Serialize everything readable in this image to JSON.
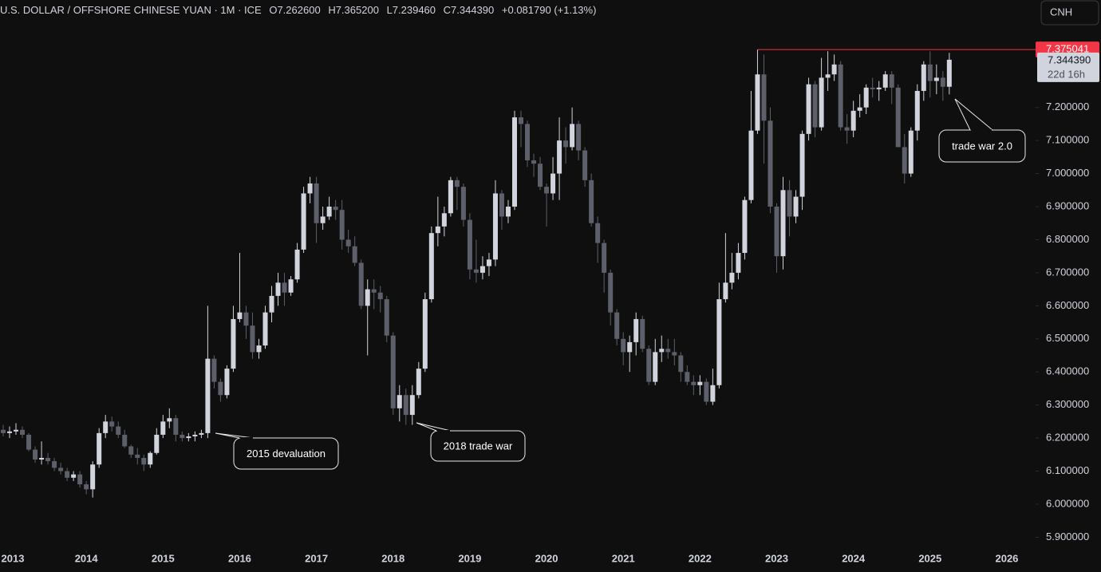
{
  "chart_data": {
    "type": "candlestick",
    "header": {
      "symbol": "U.S. DOLLAR / OFFSHORE CHINESE YUAN · 1M · ICE",
      "open": "O7.262600",
      "high": "H7.365200",
      "low": "L7.239460",
      "close": "C7.344390",
      "change": "+0.081790 (+1.13%)"
    },
    "currency_button": "CNH",
    "up_color": "#d1d4dc",
    "down_color": "#5d606b",
    "x": [
      "2012-12",
      "2013-01",
      "2013-02",
      "2013-03",
      "2013-04",
      "2013-05",
      "2013-06",
      "2013-07",
      "2013-08",
      "2013-09",
      "2013-10",
      "2013-11",
      "2013-12",
      "2014-01",
      "2014-02",
      "2014-03",
      "2014-04",
      "2014-05",
      "2014-06",
      "2014-07",
      "2014-08",
      "2014-09",
      "2014-10",
      "2014-11",
      "2014-12",
      "2015-01",
      "2015-02",
      "2015-03",
      "2015-04",
      "2015-05",
      "2015-06",
      "2015-07",
      "2015-08",
      "2015-09",
      "2015-10",
      "2015-11",
      "2015-12",
      "2016-01",
      "2016-02",
      "2016-03",
      "2016-04",
      "2016-05",
      "2016-06",
      "2016-07",
      "2016-08",
      "2016-09",
      "2016-10",
      "2016-11",
      "2016-12",
      "2017-01",
      "2017-02",
      "2017-03",
      "2017-04",
      "2017-05",
      "2017-06",
      "2017-07",
      "2017-08",
      "2017-09",
      "2017-10",
      "2017-11",
      "2017-12",
      "2018-01",
      "2018-02",
      "2018-03",
      "2018-04",
      "2018-05",
      "2018-06",
      "2018-07",
      "2018-08",
      "2018-09",
      "2018-10",
      "2018-11",
      "2018-12",
      "2019-01",
      "2019-02",
      "2019-03",
      "2019-04",
      "2019-05",
      "2019-06",
      "2019-07",
      "2019-08",
      "2019-09",
      "2019-10",
      "2019-11",
      "2019-12",
      "2020-01",
      "2020-02",
      "2020-03",
      "2020-04",
      "2020-05",
      "2020-06",
      "2020-07",
      "2020-08",
      "2020-09",
      "2020-10",
      "2020-11",
      "2020-12",
      "2021-01",
      "2021-02",
      "2021-03",
      "2021-04",
      "2021-05",
      "2021-06",
      "2021-07",
      "2021-08",
      "2021-09",
      "2021-10",
      "2021-11",
      "2021-12",
      "2022-01",
      "2022-02",
      "2022-03",
      "2022-04",
      "2022-05",
      "2022-06",
      "2022-07",
      "2022-08",
      "2022-09",
      "2022-10",
      "2022-11",
      "2022-12",
      "2023-01",
      "2023-02",
      "2023-03",
      "2023-04",
      "2023-05",
      "2023-06",
      "2023-07",
      "2023-08",
      "2023-09",
      "2023-10",
      "2023-11",
      "2023-12",
      "2024-01",
      "2024-02",
      "2024-03",
      "2024-04",
      "2024-05",
      "2024-06",
      "2024-07",
      "2024-08",
      "2024-09",
      "2024-10",
      "2024-11",
      "2024-12",
      "2025-01",
      "2025-02",
      "2025-03",
      "2025-04"
    ],
    "open": [
      6.225,
      6.215,
      6.22,
      6.225,
      6.21,
      6.165,
      6.135,
      6.14,
      6.13,
      6.11,
      6.1,
      6.08,
      6.09,
      6.06,
      6.045,
      6.12,
      6.215,
      6.25,
      6.235,
      6.21,
      6.175,
      6.15,
      6.14,
      6.12,
      6.155,
      6.21,
      6.25,
      6.26,
      6.21,
      6.2,
      6.205,
      6.21,
      6.215,
      6.44,
      6.37,
      6.33,
      6.41,
      6.56,
      6.58,
      6.54,
      6.46,
      6.48,
      6.58,
      6.63,
      6.67,
      6.64,
      6.68,
      6.77,
      6.94,
      6.97,
      6.85,
      6.87,
      6.9,
      6.89,
      6.8,
      6.78,
      6.73,
      6.6,
      6.65,
      6.64,
      6.62,
      6.51,
      6.29,
      6.33,
      6.27,
      6.33,
      6.41,
      6.62,
      6.82,
      6.84,
      6.88,
      6.98,
      6.96,
      6.86,
      6.71,
      6.7,
      6.72,
      6.74,
      6.94,
      6.87,
      6.9,
      7.17,
      7.15,
      7.04,
      7.03,
      6.96,
      6.94,
      7.0,
      7.1,
      7.08,
      7.15,
      7.07,
      6.98,
      6.85,
      6.79,
      6.7,
      6.58,
      6.5,
      6.46,
      6.49,
      6.56,
      6.47,
      6.37,
      6.46,
      6.47,
      6.46,
      6.45,
      6.4,
      6.37,
      6.36,
      6.37,
      6.31,
      6.36,
      6.62,
      6.67,
      6.7,
      6.76,
      6.92,
      7.13,
      7.3,
      7.16,
      6.9,
      6.75,
      6.95,
      6.87,
      6.93,
      7.12,
      7.27,
      7.14,
      7.29,
      7.3,
      7.33,
      7.14,
      7.13,
      7.19,
      7.2,
      7.26,
      7.255,
      7.26,
      7.3,
      7.26,
      7.08,
      7.0,
      7.13,
      7.25,
      7.33,
      7.28,
      7.29,
      7.2626
    ],
    "high": [
      6.24,
      6.235,
      6.245,
      6.235,
      6.215,
      6.175,
      6.19,
      6.155,
      6.14,
      6.125,
      6.11,
      6.1,
      6.1,
      6.07,
      6.13,
      6.23,
      6.27,
      6.265,
      6.25,
      6.225,
      6.18,
      6.17,
      6.15,
      6.16,
      6.23,
      6.27,
      6.29,
      6.27,
      6.22,
      6.215,
      6.22,
      6.225,
      6.6,
      6.45,
      6.38,
      6.42,
      6.6,
      6.76,
      6.6,
      6.58,
      6.5,
      6.6,
      6.66,
      6.7,
      6.7,
      6.69,
      6.79,
      6.96,
      6.99,
      6.99,
      6.9,
      6.93,
      6.92,
      6.92,
      6.83,
      6.81,
      6.74,
      6.68,
      6.68,
      6.66,
      6.63,
      6.52,
      6.36,
      6.35,
      6.36,
      6.43,
      6.64,
      6.84,
      6.93,
      6.9,
      6.99,
      6.99,
      6.97,
      6.88,
      6.8,
      6.75,
      6.76,
      6.98,
      6.95,
      6.92,
      7.19,
      7.19,
      7.16,
      7.06,
      7.05,
      6.97,
      7.05,
      7.17,
      7.14,
      7.2,
      7.16,
      7.08,
      7.0,
      6.87,
      6.8,
      6.71,
      6.59,
      6.52,
      6.51,
      6.58,
      6.57,
      6.48,
      6.5,
      6.51,
      6.5,
      6.5,
      6.46,
      6.42,
      6.39,
      6.39,
      6.38,
      6.41,
      6.67,
      6.82,
      6.76,
      6.79,
      6.93,
      7.25,
      7.375041,
      7.36,
      7.2,
      6.91,
      6.99,
      6.98,
      6.95,
      7.13,
      7.29,
      7.28,
      7.35,
      7.37,
      7.36,
      7.34,
      7.18,
      7.22,
      7.24,
      7.27,
      7.29,
      7.28,
      7.31,
      7.31,
      7.27,
      7.12,
      7.14,
      7.27,
      7.34,
      7.37,
      7.33,
      7.31,
      7.3652
    ],
    "low": [
      6.205,
      6.2,
      6.21,
      6.2,
      6.16,
      6.125,
      6.12,
      6.12,
      6.1,
      6.09,
      6.07,
      6.07,
      6.05,
      6.03,
      6.02,
      6.11,
      6.2,
      6.22,
      6.2,
      6.17,
      6.14,
      6.12,
      6.1,
      6.11,
      6.15,
      6.2,
      6.23,
      6.19,
      6.19,
      6.19,
      6.19,
      6.2,
      6.2,
      6.35,
      6.31,
      6.32,
      6.4,
      6.55,
      6.5,
      6.44,
      6.44,
      6.47,
      6.55,
      6.6,
      6.6,
      6.63,
      6.67,
      6.76,
      6.91,
      6.79,
      6.83,
      6.86,
      6.86,
      6.77,
      6.76,
      6.72,
      6.59,
      6.45,
      6.59,
      6.58,
      6.49,
      6.27,
      6.25,
      6.24,
      6.24,
      6.32,
      6.4,
      6.61,
      6.78,
      6.81,
      6.87,
      6.89,
      6.84,
      6.68,
      6.67,
      6.68,
      6.69,
      6.72,
      6.83,
      6.85,
      6.89,
      7.08,
      7.02,
      6.99,
      6.95,
      6.84,
      6.92,
      6.92,
      7.03,
      7.07,
      7.04,
      6.96,
      6.84,
      6.73,
      6.64,
      6.54,
      6.48,
      6.42,
      6.4,
      6.45,
      6.46,
      6.36,
      6.36,
      6.43,
      6.44,
      6.42,
      6.37,
      6.36,
      6.33,
      6.33,
      6.3,
      6.3,
      6.35,
      6.61,
      6.65,
      6.68,
      6.74,
      6.91,
      7.12,
      7.03,
      6.88,
      6.7,
      6.71,
      6.81,
      6.85,
      6.89,
      7.1,
      7.11,
      7.13,
      7.25,
      7.28,
      7.13,
      7.09,
      7.11,
      7.17,
      7.18,
      7.23,
      7.22,
      7.25,
      7.21,
      7.08,
      6.97,
      6.99,
      7.1,
      7.22,
      7.23,
      7.24,
      7.22,
      7.23946
    ],
    "close": [
      6.215,
      6.22,
      6.225,
      6.21,
      6.165,
      6.135,
      6.14,
      6.13,
      6.11,
      6.1,
      6.08,
      6.09,
      6.06,
      6.045,
      6.12,
      6.215,
      6.25,
      6.235,
      6.21,
      6.175,
      6.15,
      6.14,
      6.12,
      6.155,
      6.21,
      6.25,
      6.26,
      6.21,
      6.2,
      6.205,
      6.21,
      6.215,
      6.44,
      6.37,
      6.33,
      6.41,
      6.56,
      6.58,
      6.54,
      6.46,
      6.48,
      6.58,
      6.63,
      6.67,
      6.64,
      6.68,
      6.77,
      6.94,
      6.97,
      6.85,
      6.87,
      6.9,
      6.89,
      6.8,
      6.78,
      6.73,
      6.6,
      6.65,
      6.64,
      6.62,
      6.51,
      6.29,
      6.33,
      6.27,
      6.33,
      6.41,
      6.62,
      6.82,
      6.84,
      6.88,
      6.98,
      6.96,
      6.86,
      6.71,
      6.7,
      6.72,
      6.74,
      6.94,
      6.87,
      6.9,
      7.17,
      7.15,
      7.04,
      7.03,
      6.96,
      6.94,
      7.0,
      7.1,
      7.08,
      7.15,
      7.07,
      6.98,
      6.85,
      6.79,
      6.7,
      6.58,
      6.5,
      6.46,
      6.49,
      6.56,
      6.47,
      6.37,
      6.46,
      6.47,
      6.46,
      6.45,
      6.4,
      6.37,
      6.36,
      6.37,
      6.31,
      6.36,
      6.62,
      6.67,
      6.7,
      6.76,
      6.92,
      7.13,
      7.3,
      7.16,
      6.9,
      6.75,
      6.95,
      6.87,
      6.93,
      7.12,
      7.27,
      7.14,
      7.29,
      7.3,
      7.33,
      7.14,
      7.13,
      7.19,
      7.2,
      7.26,
      7.255,
      7.26,
      7.3,
      7.26,
      7.08,
      7.0,
      7.13,
      7.25,
      7.33,
      7.28,
      7.29,
      7.2626,
      7.34439
    ],
    "xlim": [
      "2012-12",
      "2026-05"
    ],
    "xticks": [
      {
        "value": "2013-01",
        "label": "2013"
      },
      {
        "value": "2014-01",
        "label": "2014"
      },
      {
        "value": "2015-01",
        "label": "2015"
      },
      {
        "value": "2016-01",
        "label": "2016"
      },
      {
        "value": "2017-01",
        "label": "2017"
      },
      {
        "value": "2018-01",
        "label": "2018"
      },
      {
        "value": "2019-01",
        "label": "2019"
      },
      {
        "value": "2020-01",
        "label": "2020"
      },
      {
        "value": "2021-01",
        "label": "2021"
      },
      {
        "value": "2022-01",
        "label": "2022"
      },
      {
        "value": "2023-01",
        "label": "2023"
      },
      {
        "value": "2024-01",
        "label": "2024"
      },
      {
        "value": "2025-01",
        "label": "2025"
      },
      {
        "value": "2026-01",
        "label": "2026"
      }
    ],
    "ylim": [
      5.86,
      7.525
    ],
    "yticks": [
      {
        "value": 5.9,
        "label": "5.900000"
      },
      {
        "value": 6.0,
        "label": "6.000000"
      },
      {
        "value": 6.1,
        "label": "6.100000"
      },
      {
        "value": 6.2,
        "label": "6.200000"
      },
      {
        "value": 6.3,
        "label": "6.300000"
      },
      {
        "value": 6.4,
        "label": "6.400000"
      },
      {
        "value": 6.5,
        "label": "6.500000"
      },
      {
        "value": 6.6,
        "label": "6.600000"
      },
      {
        "value": 6.7,
        "label": "6.700000"
      },
      {
        "value": 6.8,
        "label": "6.800000"
      },
      {
        "value": 6.9,
        "label": "6.900000"
      },
      {
        "value": 7.0,
        "label": "7.000000"
      },
      {
        "value": 7.1,
        "label": "7.100000"
      },
      {
        "value": 7.2,
        "label": "7.200000"
      }
    ],
    "price_line": 7.375041,
    "price_line_color": "#f23645",
    "last_price": {
      "value": 7.34439,
      "label": "7.344390"
    },
    "countdown": "22d 16h",
    "annotations": [
      "2015 devaluation",
      "2018 trade war",
      "trade war 2.0"
    ]
  }
}
